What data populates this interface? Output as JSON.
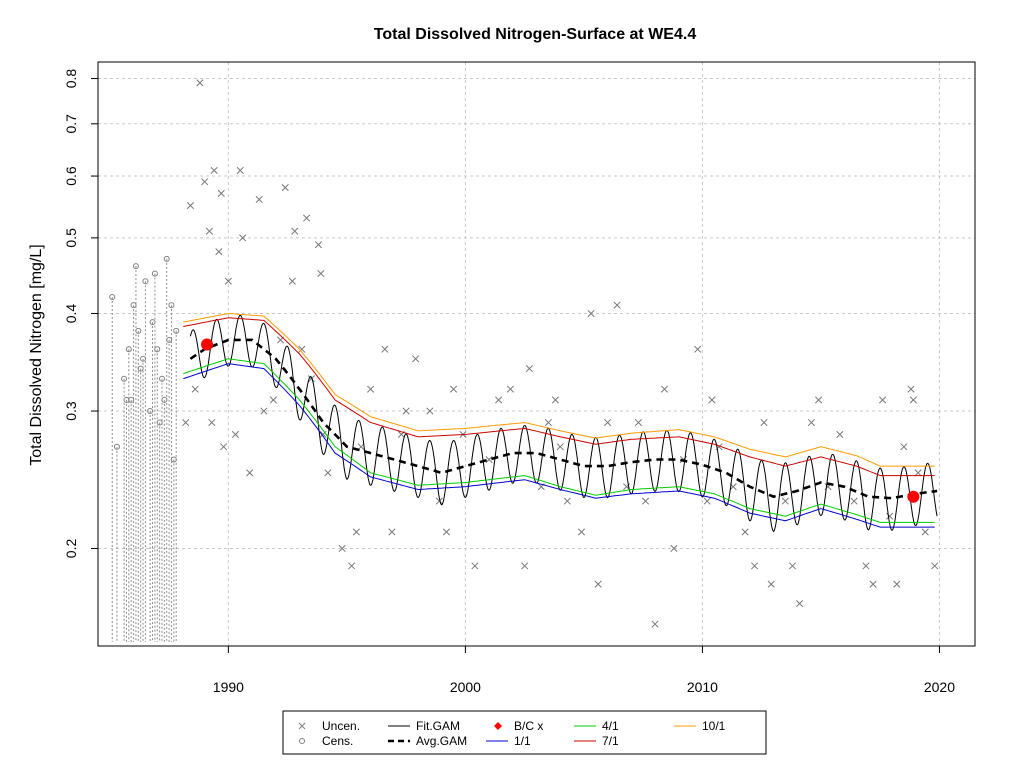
{
  "chart_data": {
    "type": "scatter",
    "title": "Total Dissolved Nitrogen-Surface at WE4.4",
    "xlabel": "",
    "ylabel": "Total Dissolved Nitrogen [mg/L]",
    "xlim": [
      1984.5,
      2021.5
    ],
    "ylim": [
      0.15,
      0.84
    ],
    "y_scale": "log",
    "x_ticks": [
      1990,
      2000,
      2010,
      2020
    ],
    "y_ticks": [
      0.2,
      0.3,
      0.4,
      0.5,
      0.6,
      0.7,
      0.8
    ],
    "grid": true,
    "legend_placement": "bottom",
    "legend": [
      {
        "label": "Uncen.",
        "symbol": "x-icon",
        "color": "#7f7f7f"
      },
      {
        "label": "Cens.",
        "symbol": "circle-icon",
        "color": "#7f7f7f"
      },
      {
        "label": "Fit.GAM",
        "symbol": "line",
        "color": "#000000"
      },
      {
        "label": "Avg.GAM",
        "symbol": "dashed-line",
        "color": "#000000"
      },
      {
        "label": "B/C x",
        "symbol": "diamond-icon",
        "color": "#ff0000"
      },
      {
        "label": "1/1",
        "symbol": "line",
        "color": "#0000cc"
      },
      {
        "label": "4/1",
        "symbol": "line",
        "color": "#00cc00"
      },
      {
        "label": "7/1",
        "symbol": "line",
        "color": "#cc0000"
      },
      {
        "label": "10/1",
        "symbol": "line",
        "color": "#ff9900"
      }
    ],
    "uncensored": [
      [
        1988.8,
        0.79
      ],
      [
        1989.0,
        0.59
      ],
      [
        1989.2,
        0.51
      ],
      [
        1989.4,
        0.61
      ],
      [
        1989.6,
        0.48
      ],
      [
        1989.7,
        0.57
      ],
      [
        1990.0,
        0.44
      ],
      [
        1990.5,
        0.61
      ],
      [
        1990.6,
        0.5
      ],
      [
        1991.3,
        0.56
      ],
      [
        1992.4,
        0.58
      ],
      [
        1992.8,
        0.51
      ],
      [
        1993.3,
        0.53
      ],
      [
        1993.8,
        0.49
      ],
      [
        1993.9,
        0.45
      ],
      [
        1988.4,
        0.55
      ],
      [
        1988.2,
        0.29
      ],
      [
        1988.6,
        0.32
      ],
      [
        1989.3,
        0.29
      ],
      [
        1989.8,
        0.27
      ],
      [
        1990.3,
        0.28
      ],
      [
        1990.9,
        0.25
      ],
      [
        1991.5,
        0.3
      ],
      [
        1991.9,
        0.31
      ],
      [
        1992.2,
        0.37
      ],
      [
        1992.7,
        0.44
      ],
      [
        1993.1,
        0.36
      ],
      [
        1993.5,
        0.33
      ],
      [
        1994.0,
        0.28
      ],
      [
        1994.2,
        0.25
      ],
      [
        1994.8,
        0.2
      ],
      [
        1995.2,
        0.19
      ],
      [
        1995.4,
        0.21
      ],
      [
        1995.6,
        0.27
      ],
      [
        1996.0,
        0.32
      ],
      [
        1996.6,
        0.36
      ],
      [
        1996.9,
        0.21
      ],
      [
        1997.3,
        0.28
      ],
      [
        1997.9,
        0.35
      ],
      [
        1998.5,
        0.3
      ],
      [
        1998.9,
        0.23
      ],
      [
        1999.2,
        0.21
      ],
      [
        1999.5,
        0.32
      ],
      [
        1999.9,
        0.28
      ],
      [
        2000.4,
        0.19
      ],
      [
        2001.0,
        0.26
      ],
      [
        2001.4,
        0.31
      ],
      [
        2001.9,
        0.32
      ],
      [
        2002.5,
        0.19
      ],
      [
        2002.7,
        0.34
      ],
      [
        2003.2,
        0.24
      ],
      [
        2003.5,
        0.29
      ],
      [
        2004.0,
        0.27
      ],
      [
        2004.3,
        0.23
      ],
      [
        2004.9,
        0.21
      ],
      [
        2005.3,
        0.4
      ],
      [
        2005.6,
        0.18
      ],
      [
        2006.0,
        0.29
      ],
      [
        2006.4,
        0.41
      ],
      [
        2006.8,
        0.24
      ],
      [
        2007.3,
        0.29
      ],
      [
        2007.6,
        0.23
      ],
      [
        2008.0,
        0.16
      ],
      [
        2008.4,
        0.32
      ],
      [
        2008.8,
        0.2
      ],
      [
        2009.2,
        0.26
      ],
      [
        2009.8,
        0.36
      ],
      [
        2010.2,
        0.23
      ],
      [
        2010.7,
        0.27
      ],
      [
        2011.3,
        0.24
      ],
      [
        2011.8,
        0.21
      ],
      [
        2012.2,
        0.19
      ],
      [
        2012.6,
        0.29
      ],
      [
        2012.9,
        0.18
      ],
      [
        2013.5,
        0.23
      ],
      [
        2013.8,
        0.19
      ],
      [
        2014.1,
        0.17
      ],
      [
        2014.6,
        0.29
      ],
      [
        2014.9,
        0.31
      ],
      [
        2015.3,
        0.24
      ],
      [
        2015.8,
        0.28
      ],
      [
        2016.4,
        0.23
      ],
      [
        2016.9,
        0.19
      ],
      [
        2017.2,
        0.18
      ],
      [
        2017.6,
        0.31
      ],
      [
        2017.9,
        0.22
      ],
      [
        2018.2,
        0.18
      ],
      [
        2018.5,
        0.27
      ],
      [
        2018.8,
        0.32
      ],
      [
        2019.1,
        0.25
      ],
      [
        2019.4,
        0.21
      ],
      [
        2019.8,
        0.19
      ],
      [
        2018.9,
        0.31
      ],
      [
        2010.4,
        0.31
      ],
      [
        2003.8,
        0.31
      ],
      [
        1997.5,
        0.3
      ]
    ],
    "censored": [
      [
        1985.1,
        0.42
      ],
      [
        1985.3,
        0.27
      ],
      [
        1985.6,
        0.33
      ],
      [
        1985.8,
        0.36
      ],
      [
        1985.9,
        0.31
      ],
      [
        1986.0,
        0.41
      ],
      [
        1986.1,
        0.46
      ],
      [
        1986.2,
        0.38
      ],
      [
        1986.3,
        0.34
      ],
      [
        1986.5,
        0.44
      ],
      [
        1986.7,
        0.3
      ],
      [
        1986.8,
        0.39
      ],
      [
        1986.9,
        0.45
      ],
      [
        1987.0,
        0.36
      ],
      [
        1987.2,
        0.33
      ],
      [
        1987.3,
        0.31
      ],
      [
        1987.4,
        0.47
      ],
      [
        1987.5,
        0.37
      ],
      [
        1987.6,
        0.41
      ],
      [
        1987.7,
        0.26
      ],
      [
        1987.8,
        0.38
      ],
      [
        1986.4,
        0.35
      ],
      [
        1985.7,
        0.31
      ],
      [
        1987.1,
        0.29
      ]
    ],
    "fit_gam": {
      "x_start": 1988.4,
      "x_end": 2019.9,
      "amplitude_note": "seasonal oscillation around Avg.GAM"
    },
    "avg_gam": [
      [
        1988.4,
        0.35
      ],
      [
        1989.0,
        0.36
      ],
      [
        1990.0,
        0.37
      ],
      [
        1991.0,
        0.37
      ],
      [
        1992.0,
        0.35
      ],
      [
        1993.0,
        0.32
      ],
      [
        1994.0,
        0.29
      ],
      [
        1995.0,
        0.27
      ],
      [
        1996.0,
        0.265
      ],
      [
        1997.0,
        0.26
      ],
      [
        1998.0,
        0.255
      ],
      [
        1999.0,
        0.25
      ],
      [
        2000.0,
        0.255
      ],
      [
        2001.0,
        0.26
      ],
      [
        2002.0,
        0.265
      ],
      [
        2003.0,
        0.265
      ],
      [
        2004.0,
        0.26
      ],
      [
        2005.0,
        0.255
      ],
      [
        2006.0,
        0.255
      ],
      [
        2007.0,
        0.258
      ],
      [
        2008.0,
        0.26
      ],
      [
        2009.0,
        0.26
      ],
      [
        2010.0,
        0.256
      ],
      [
        2011.0,
        0.25
      ],
      [
        2012.0,
        0.24
      ],
      [
        2013.0,
        0.233
      ],
      [
        2014.0,
        0.237
      ],
      [
        2015.0,
        0.243
      ],
      [
        2016.0,
        0.24
      ],
      [
        2017.0,
        0.233
      ],
      [
        2018.0,
        0.232
      ],
      [
        2019.0,
        0.235
      ],
      [
        2019.9,
        0.237
      ]
    ],
    "curves_date_1_1": [
      [
        1988.1,
        0.33
      ],
      [
        1990.0,
        0.345
      ],
      [
        1991.5,
        0.34
      ],
      [
        1993.0,
        0.305
      ],
      [
        1994.5,
        0.265
      ],
      [
        1996.0,
        0.247
      ],
      [
        1998.0,
        0.238
      ],
      [
        2000.0,
        0.24
      ],
      [
        2002.5,
        0.245
      ],
      [
        2004.0,
        0.238
      ],
      [
        2005.5,
        0.232
      ],
      [
        2007.0,
        0.235
      ],
      [
        2009.0,
        0.237
      ],
      [
        2010.5,
        0.232
      ],
      [
        2012.0,
        0.222
      ],
      [
        2013.5,
        0.217
      ],
      [
        2015.0,
        0.225
      ],
      [
        2016.5,
        0.218
      ],
      [
        2017.5,
        0.213
      ],
      [
        2019.8,
        0.213
      ]
    ],
    "curves_date_4_1": [
      [
        1988.1,
        0.335
      ],
      [
        1990.0,
        0.35
      ],
      [
        1991.5,
        0.345
      ],
      [
        1993.0,
        0.31
      ],
      [
        1994.5,
        0.27
      ],
      [
        1996.0,
        0.25
      ],
      [
        1998.0,
        0.241
      ],
      [
        2000.0,
        0.243
      ],
      [
        2002.5,
        0.248
      ],
      [
        2004.0,
        0.24
      ],
      [
        2005.5,
        0.234
      ],
      [
        2007.0,
        0.238
      ],
      [
        2009.0,
        0.24
      ],
      [
        2010.5,
        0.235
      ],
      [
        2012.0,
        0.225
      ],
      [
        2013.5,
        0.22
      ],
      [
        2015.0,
        0.228
      ],
      [
        2016.5,
        0.221
      ],
      [
        2017.5,
        0.216
      ],
      [
        2019.8,
        0.216
      ]
    ],
    "curves_date_7_1": [
      [
        1988.1,
        0.385
      ],
      [
        1990.0,
        0.395
      ],
      [
        1991.5,
        0.392
      ],
      [
        1993.0,
        0.355
      ],
      [
        1994.5,
        0.31
      ],
      [
        1996.0,
        0.29
      ],
      [
        1998.0,
        0.278
      ],
      [
        2000.0,
        0.28
      ],
      [
        2002.5,
        0.285
      ],
      [
        2004.0,
        0.278
      ],
      [
        2005.5,
        0.272
      ],
      [
        2007.0,
        0.276
      ],
      [
        2009.0,
        0.278
      ],
      [
        2010.5,
        0.272
      ],
      [
        2012.0,
        0.262
      ],
      [
        2013.5,
        0.255
      ],
      [
        2015.0,
        0.262
      ],
      [
        2016.5,
        0.255
      ],
      [
        2017.5,
        0.248
      ],
      [
        2019.8,
        0.248
      ]
    ],
    "curves_date_10_1": [
      [
        1988.1,
        0.39
      ],
      [
        1990.0,
        0.4
      ],
      [
        1991.5,
        0.397
      ],
      [
        1993.0,
        0.36
      ],
      [
        1994.5,
        0.315
      ],
      [
        1996.0,
        0.295
      ],
      [
        1998.0,
        0.283
      ],
      [
        2000.0,
        0.285
      ],
      [
        2002.5,
        0.29
      ],
      [
        2004.0,
        0.283
      ],
      [
        2005.5,
        0.277
      ],
      [
        2007.0,
        0.281
      ],
      [
        2009.0,
        0.284
      ],
      [
        2010.5,
        0.278
      ],
      [
        2012.0,
        0.268
      ],
      [
        2013.5,
        0.262
      ],
      [
        2015.0,
        0.27
      ],
      [
        2016.5,
        0.263
      ],
      [
        2017.5,
        0.255
      ],
      [
        2019.8,
        0.255
      ]
    ],
    "bc_points": [
      [
        1989.1,
        0.365
      ],
      [
        2018.9,
        0.233
      ]
    ]
  }
}
